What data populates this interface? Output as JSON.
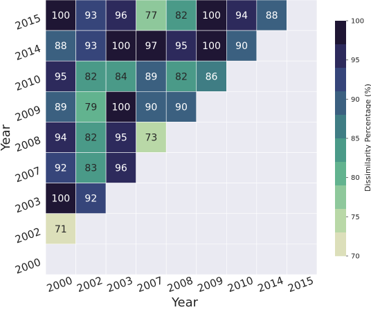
{
  "chart_data": {
    "type": "heatmap",
    "xlabel": "Year",
    "ylabel": "Year",
    "x_categories": [
      "2000",
      "2002",
      "2003",
      "2007",
      "2008",
      "2009",
      "2010",
      "2014",
      "2015"
    ],
    "y_categories": [
      "2015",
      "2014",
      "2010",
      "2009",
      "2008",
      "2007",
      "2003",
      "2002",
      "2000"
    ],
    "values": [
      [
        100,
        93,
        96,
        77,
        82,
        100,
        94,
        88,
        null
      ],
      [
        88,
        93,
        100,
        97,
        95,
        100,
        90,
        null,
        null
      ],
      [
        95,
        82,
        84,
        89,
        82,
        86,
        null,
        null,
        null
      ],
      [
        89,
        79,
        100,
        90,
        90,
        null,
        null,
        null,
        null
      ],
      [
        94,
        82,
        95,
        73,
        null,
        null,
        null,
        null,
        null
      ],
      [
        92,
        83,
        96,
        null,
        null,
        null,
        null,
        null,
        null
      ],
      [
        100,
        92,
        null,
        null,
        null,
        null,
        null,
        null,
        null
      ],
      [
        71,
        null,
        null,
        null,
        null,
        null,
        null,
        null,
        null
      ],
      [
        null,
        null,
        null,
        null,
        null,
        null,
        null,
        null,
        null
      ]
    ],
    "colorbar": {
      "label": "Dissimilarity Percentage (%)",
      "min": 70,
      "max": 100,
      "ticks": [
        "100",
        "95",
        "90",
        "85",
        "80",
        "75",
        "70"
      ]
    },
    "empty_cell_color": "#eaeaf2",
    "palette": [
      "#dcdfba",
      "#b9d8a7",
      "#8ec89b",
      "#62b38f",
      "#4a9a88",
      "#3f7d84",
      "#3b6080",
      "#36457a",
      "#2d2a5c",
      "#1f1634"
    ]
  }
}
